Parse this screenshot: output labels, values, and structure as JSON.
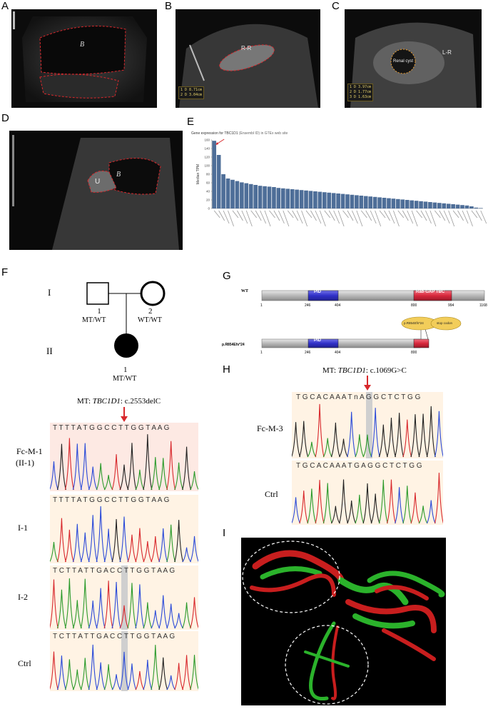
{
  "panels": {
    "A": {
      "label": "A",
      "bladder_label": "B"
    },
    "B": {
      "label": "B",
      "organ_label": "R-R",
      "measure": [
        "1 D 8.71cm",
        "2 D 3.04cm"
      ]
    },
    "C": {
      "label": "C",
      "organ_label": "L-R",
      "cyst_label": "Renal cyst",
      "measure": [
        "1 D 3.97cm",
        "2 D 1.77cm",
        "3 D 1.63cm"
      ]
    },
    "D": {
      "label": "D",
      "bladder_label": "B",
      "ureter_label": "U"
    },
    "E": {
      "label": "E",
      "title": "Gene expression for TBC1D1",
      "title_suffix": "(Ensembl ID) in GTEx web site",
      "ylabel": "Median TPM"
    },
    "F": {
      "label": "F",
      "gen_I": "I",
      "gen_II": "II",
      "father": {
        "num": "1",
        "geno": "MT/WT"
      },
      "mother": {
        "num": "2",
        "geno": "WT/WT"
      },
      "proband": {
        "num": "1",
        "geno": "MT/WT"
      },
      "mt_prefix": "MT:",
      "mt_gene": "TBC1D1",
      "mt_change": ": c.2553delC",
      "tracks": [
        {
          "label": "Fc-M-1",
          "label2": "(II-1)",
          "seq": "T T T T A T G G C C T T G G T A A G"
        },
        {
          "label": "I-1",
          "label2": "",
          "seq": "T T T T A T G G C C T T G G T A A G"
        },
        {
          "label": "I-2",
          "label2": "",
          "seq": "T C T T A T T G A C C T T G G T A A G"
        },
        {
          "label": "Ctrl",
          "label2": "",
          "seq": "T C T T A T T G A C C T T G G T A A G"
        }
      ]
    },
    "G": {
      "label": "G",
      "wt_label": "WT",
      "mut_label": "p.R854Efs*24",
      "pid": "PID",
      "rabgap": "Rab-GAP TBC",
      "wt_ticks": [
        "1",
        "246",
        "404",
        "800",
        "994",
        "1168"
      ],
      "mut_ticks": [
        "1",
        "246",
        "404",
        "800"
      ],
      "bubble1": "p.R854Efs*24",
      "bubble2": "stop codon"
    },
    "H": {
      "label": "H",
      "mt_prefix": "MT:",
      "mt_gene": "TBC1D1",
      "mt_change": ": c.1069G>C",
      "tracks": [
        {
          "label": "Fc-M-3",
          "seq": "T G C A C A A A T n A G G C T C T G G"
        },
        {
          "label": "Ctrl",
          "seq": "T G C A C A A A T G A G G C T C T G G"
        }
      ]
    },
    "I": {
      "label": "I"
    }
  },
  "chart_data": {
    "type": "bar",
    "title": "Gene expression for TBC1D1",
    "ylabel": "Median TPM",
    "ylim": [
      0,
      160
    ],
    "yticks": [
      0,
      20,
      40,
      60,
      80,
      100,
      120,
      140,
      160
    ],
    "values": [
      158,
      125,
      80,
      70,
      67,
      64,
      61,
      59,
      57,
      55,
      53,
      52,
      51,
      50,
      48,
      47,
      46,
      45,
      44,
      43,
      42,
      41,
      40,
      39,
      38,
      37,
      36,
      35,
      34,
      33,
      32,
      31,
      30,
      29,
      28,
      27,
      26,
      25,
      24,
      23,
      22,
      21,
      20,
      19,
      18,
      17,
      16,
      15,
      14,
      13,
      12,
      11,
      10,
      9,
      8,
      7,
      5,
      2,
      1
    ],
    "bar_color": "#4e6e98"
  },
  "colors": {
    "red": "#d8282c",
    "pid_blue": "#3030c8",
    "rab_red": "#d8283c",
    "gold": "#e6c24a",
    "grey_bar": "#b8b8b8"
  }
}
